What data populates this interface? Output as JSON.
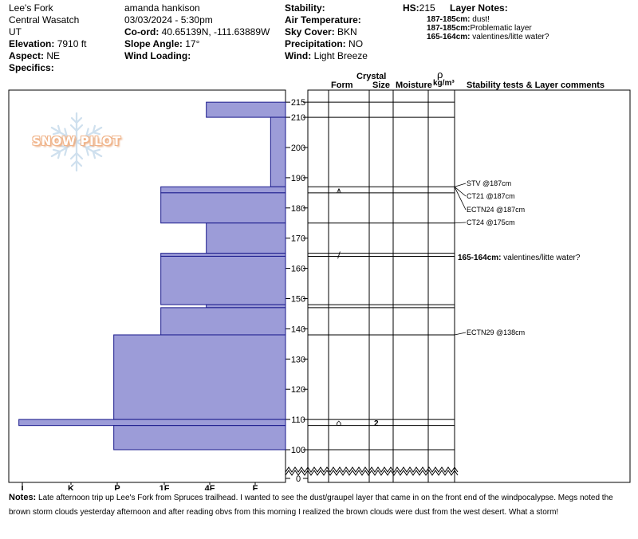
{
  "header": {
    "location": "Lee's Fork",
    "range": "Central Wasatch",
    "state": "UT",
    "elevation_label": "Elevation:",
    "elevation_value": "7910 ft",
    "aspect_label": "Aspect:",
    "aspect_value": "NE",
    "specifics_label": "Specifics:",
    "observer": "amanda hankison",
    "datetime": "03/03/2024 - 5:30pm",
    "coord_label": "Co-ord:",
    "coord_value": "40.65139N, -111.63889W",
    "slope_label": "Slope Angle:",
    "slope_value": "17°",
    "wind_loading_label": "Wind Loading:",
    "stability_label": "Stability:",
    "air_temp_label": "Air Temperature:",
    "sky_label": "Sky Cover:",
    "sky_value": "BKN",
    "precip_label": "Precipitation:",
    "precip_value": "NO",
    "wind_label": "Wind:",
    "wind_value": "Light Breeze",
    "hs_label": "HS:",
    "hs_value": "215"
  },
  "layer_notes": {
    "title": "Layer Notes:",
    "items": [
      {
        "range": "187-185cm:",
        "text": "dust!"
      },
      {
        "range": "187-185cm:",
        "text": "Problematic layer"
      },
      {
        "range": "165-164cm:",
        "text": "valentines/litte water?"
      }
    ]
  },
  "columns": {
    "crystal": "Crystal",
    "form": "Form",
    "size": "Size",
    "moisture": "Moisture",
    "rho": "ρ",
    "density_unit": "kg/m³",
    "comments": "Stability tests & Layer comments"
  },
  "logo": {
    "text": "SNOW PILOT"
  },
  "colors": {
    "hardness_fill": "#9c9cd8",
    "hardness_stroke": "#1a1a8c",
    "logo": "#f0b48a"
  },
  "chart_data": {
    "type": "bar",
    "orientation": "horizontal",
    "x_axis": {
      "categories": [
        "I",
        "K",
        "P",
        "1F",
        "4F",
        "F"
      ],
      "direction": "right-to-left"
    },
    "y_axis": {
      "label": "",
      "range": [
        0,
        215
      ],
      "ticks": [
        0,
        100,
        110,
        120,
        130,
        140,
        150,
        160,
        170,
        180,
        190,
        200,
        210,
        215
      ],
      "break_below": 100
    },
    "layers": [
      {
        "top": 215,
        "bottom": 210,
        "hardness": "4F-"
      },
      {
        "top": 210,
        "bottom": 187,
        "hardness": "F+"
      },
      {
        "top": 187,
        "bottom": 185,
        "hardness": "1F-"
      },
      {
        "top": 185,
        "bottom": 175,
        "hardness": "1F-"
      },
      {
        "top": 175,
        "bottom": 165,
        "hardness": "4F-"
      },
      {
        "top": 165,
        "bottom": 164,
        "hardness": "1F-"
      },
      {
        "top": 164,
        "bottom": 148,
        "hardness": "1F-"
      },
      {
        "top": 148,
        "bottom": 147,
        "hardness": "4F-"
      },
      {
        "top": 147,
        "bottom": 138,
        "hardness": "1F-"
      },
      {
        "top": 138,
        "bottom": 110,
        "hardness": "P-"
      },
      {
        "top": 110,
        "bottom": 108,
        "hardness": "I-"
      },
      {
        "top": 108,
        "bottom": 100,
        "hardness": "P-"
      }
    ],
    "crystal_forms": [
      {
        "depth": 186,
        "form": "surface-hoar-faceted-symbol"
      },
      {
        "depth": 164.5,
        "form": "decomposing-symbol"
      },
      {
        "depth": 109,
        "form": "melt-freeze-crust-symbol",
        "size": "2"
      }
    ],
    "stability_tests": [
      {
        "depth": 187,
        "label": "STV @187cm"
      },
      {
        "depth": 187,
        "label": "CT21 @187cm"
      },
      {
        "depth": 187,
        "label": "ECTN24 @187cm"
      },
      {
        "depth": 175,
        "label": "CT24 @175cm"
      },
      {
        "depth": 138,
        "label": "ECTN29 @138cm"
      }
    ],
    "layer_comments": [
      {
        "depth": 165,
        "label": "165-164cm:",
        "text": "valentines/litte water?"
      }
    ]
  },
  "notes": {
    "label": "Notes:",
    "text": "Late afternoon trip up Lee's Fork from Spruces trailhead. I wanted to see the dust/graupel layer that came in on the front end of the windpocalypse. Megs noted the brown storm clouds yesterday afternoon and after reading obvs from this morning I realized the brown clouds were dust from the west desert. What a storm!"
  }
}
